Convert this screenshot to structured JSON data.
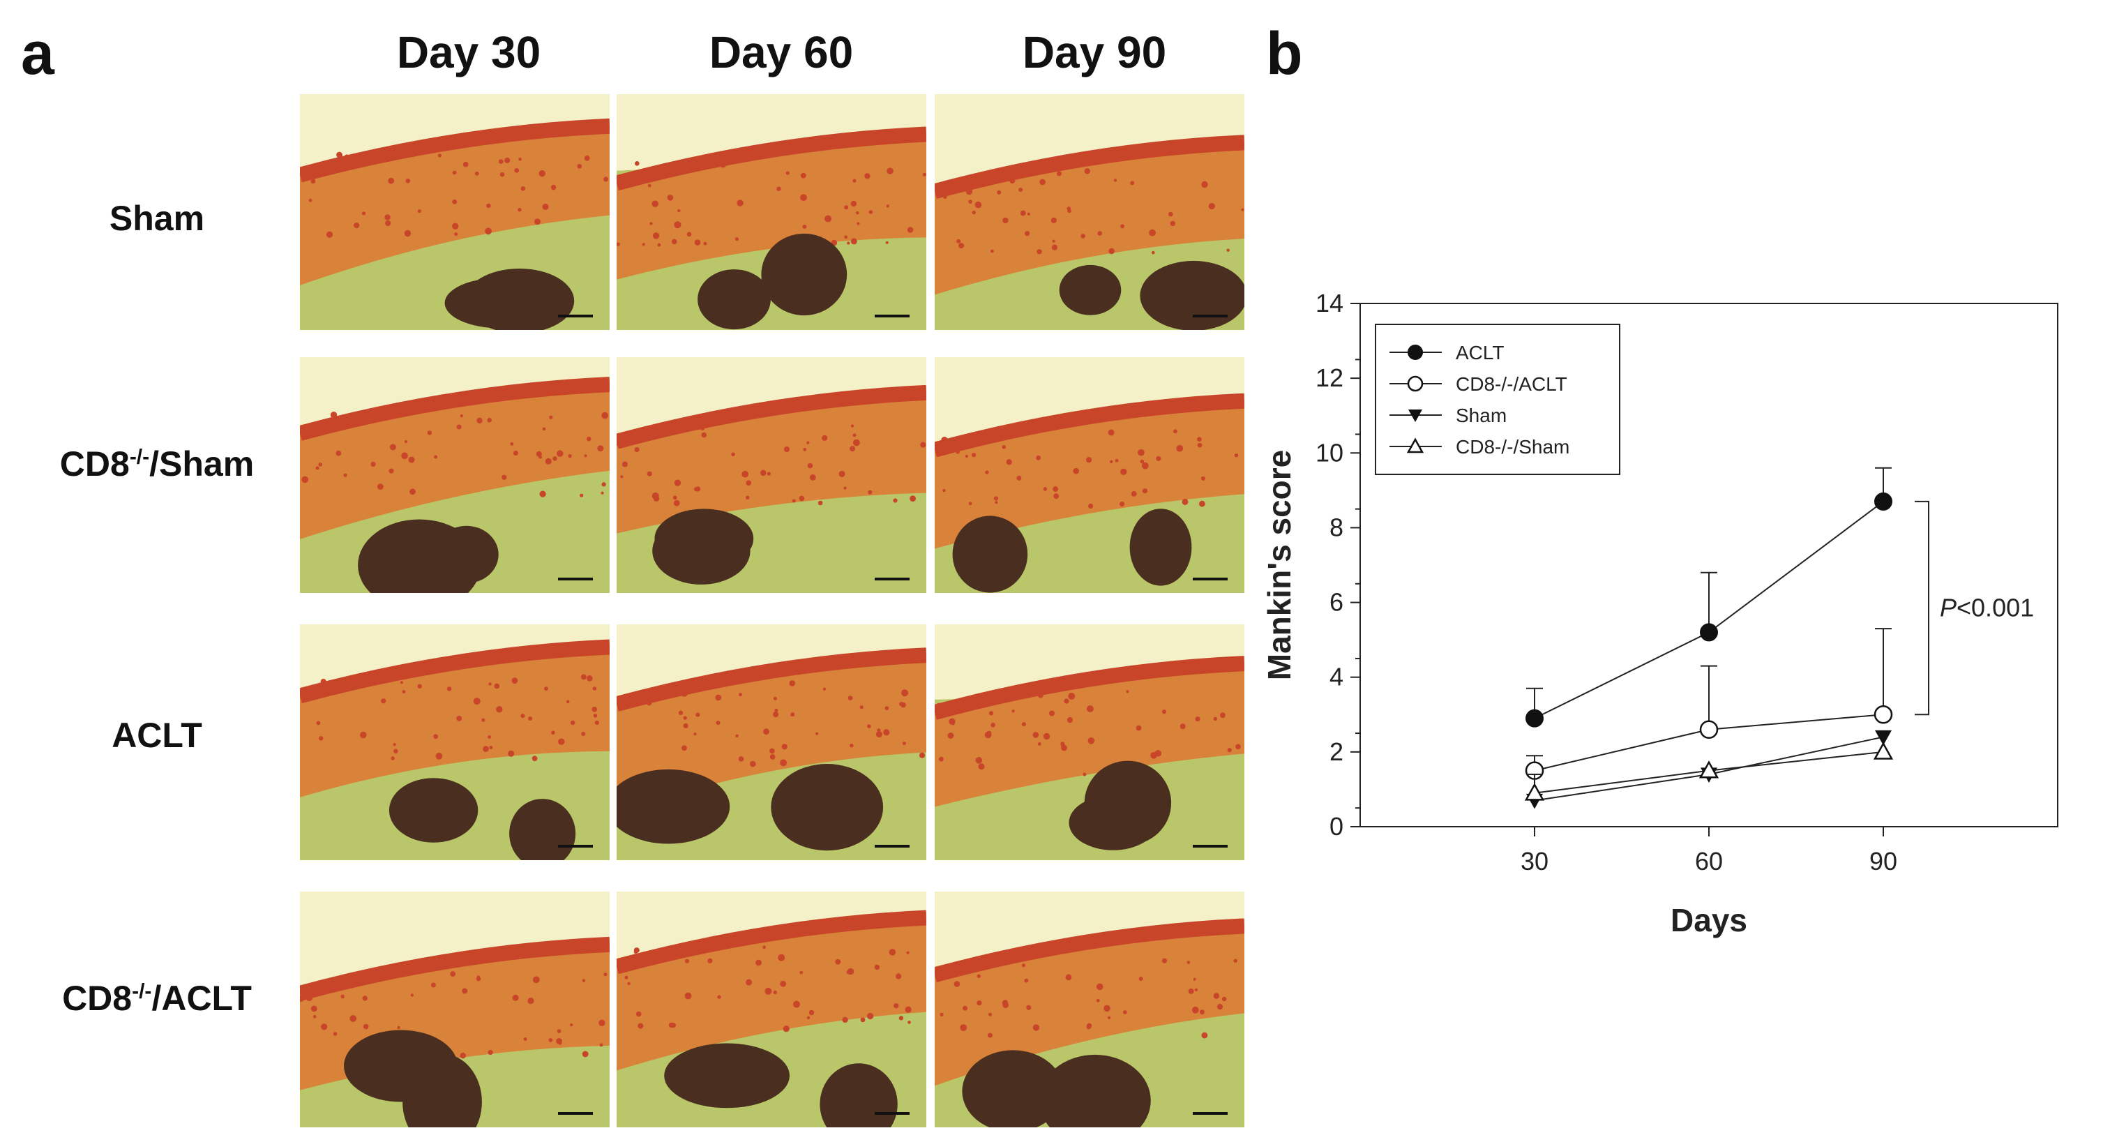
{
  "figure": {
    "panel_a_label": "a",
    "panel_b_label": "b",
    "columns": [
      "Day 30",
      "Day 60",
      "Day 90"
    ],
    "rows": [
      {
        "label_main": "Sham",
        "label_sup": "",
        "label_rest": ""
      },
      {
        "label_main": "CD8",
        "label_sup": "-/-",
        "label_rest": "/Sham"
      },
      {
        "label_main": "ACLT",
        "label_sup": "",
        "label_rest": ""
      },
      {
        "label_main": "CD8",
        "label_sup": "-/-",
        "label_rest": "/ACLT"
      }
    ],
    "colors": {
      "background_green": "#b9c76a",
      "cartilage_red": "#c8452a",
      "cartilage_orange": "#d9823a",
      "marrow_dark": "#4a2e20",
      "joint_space": "#f4f0c8"
    }
  },
  "chart_data": {
    "type": "line",
    "x": [
      30,
      60,
      90
    ],
    "series": [
      {
        "name": "ACLT",
        "marker": "filled-circle",
        "values": [
          2.9,
          5.2,
          8.7
        ],
        "err": [
          0.8,
          1.6,
          0.9
        ]
      },
      {
        "name": "CD8-/-/ACLT",
        "marker": "open-circle",
        "values": [
          1.5,
          2.6,
          3.0
        ],
        "err": [
          0.4,
          1.7,
          2.3
        ]
      },
      {
        "name": "Sham",
        "marker": "filled-triangle-down",
        "values": [
          0.7,
          1.4,
          2.4
        ],
        "err": [
          0,
          0,
          0
        ]
      },
      {
        "name": "CD8-/-/Sham",
        "marker": "open-triangle-up",
        "values": [
          0.9,
          1.5,
          2.0
        ],
        "err": [
          0.5,
          0,
          0
        ]
      }
    ],
    "xlabel": "Days",
    "ylabel": "Mankin's score",
    "xticks": [
      30,
      60,
      90
    ],
    "xlim": [
      0,
      120
    ],
    "yticks": [
      0,
      2,
      4,
      6,
      8,
      10,
      12,
      14
    ],
    "ylim": [
      0,
      14
    ],
    "legend_position": "top-left",
    "annotation": {
      "text_italic": "P",
      "text_rest": "<0.001",
      "bracket_from": 8.7,
      "bracket_to": 3.0
    }
  }
}
